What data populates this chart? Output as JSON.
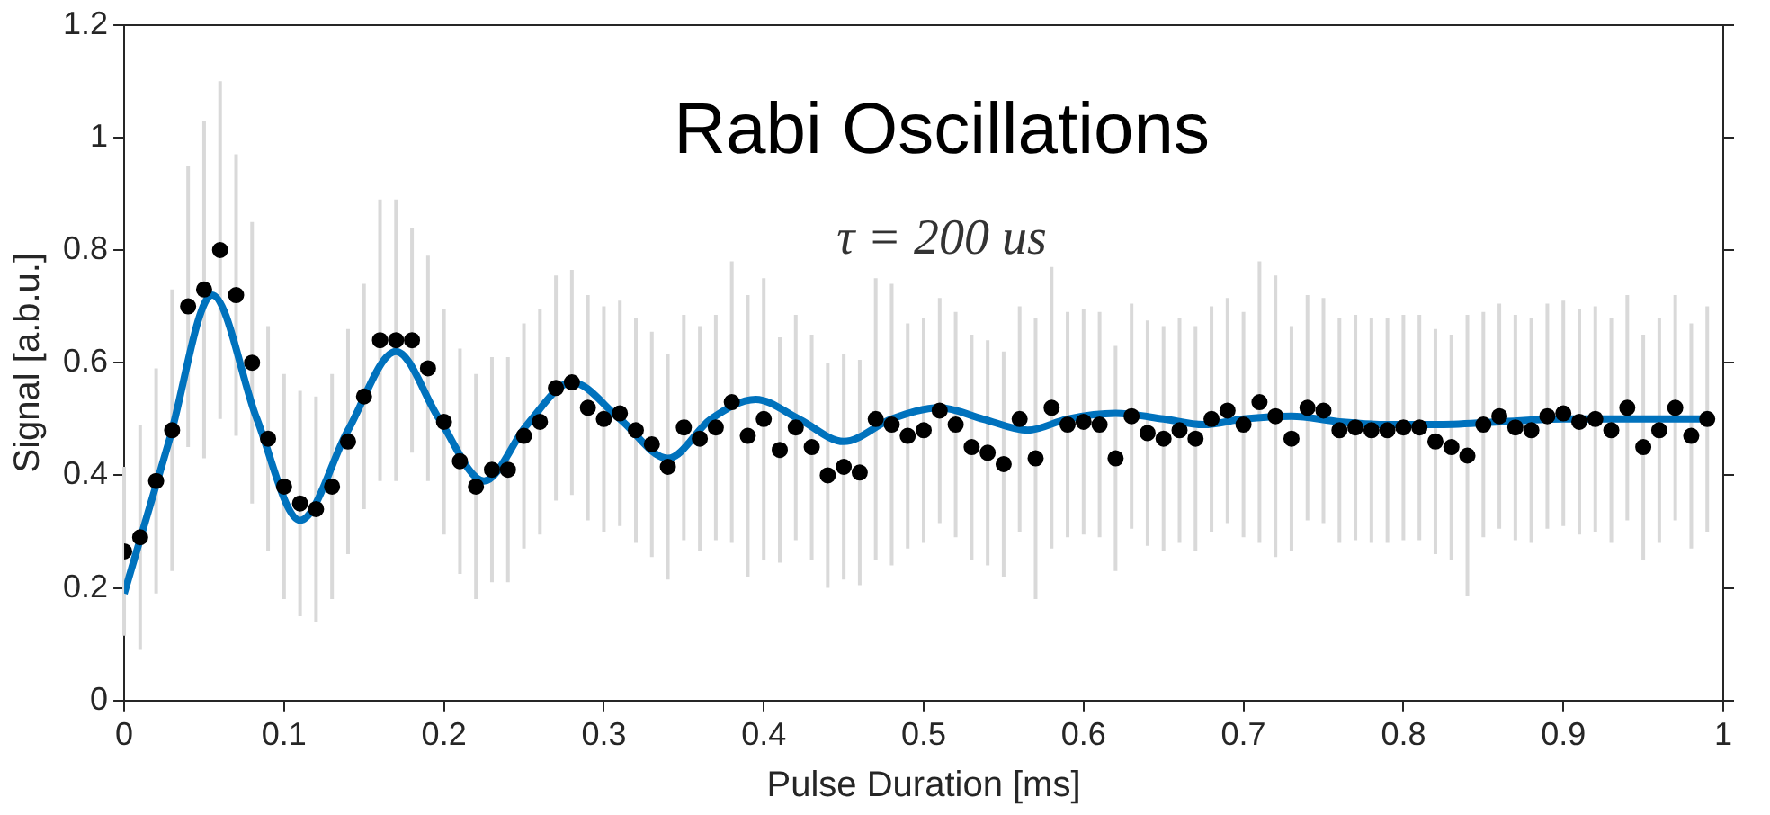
{
  "chart_data": {
    "type": "scatter",
    "title": "Rabi Oscillations",
    "xlabel": "Pulse Duration [ms]",
    "ylabel": "Signal [a.b.u.]",
    "annotations": [
      "τ = 200 us"
    ],
    "xlim": [
      0,
      1
    ],
    "xticks": [
      0,
      0.1,
      0.2,
      0.3,
      0.4,
      0.5,
      0.6,
      0.7,
      0.8,
      0.9,
      1
    ],
    "ylim": [
      0,
      1.2
    ],
    "yticks": [
      0,
      0.2,
      0.4,
      0.6,
      0.8,
      1,
      1.2
    ],
    "grid": false,
    "legend": false,
    "marker": "circle",
    "series": [
      {
        "color": "#000000",
        "x": [
          0,
          0.01,
          0.02,
          0.03,
          0.04,
          0.05,
          0.06,
          0.07,
          0.08,
          0.09,
          0.1,
          0.11,
          0.12,
          0.13,
          0.14,
          0.15,
          0.16,
          0.17,
          0.18,
          0.19,
          0.2,
          0.21,
          0.22,
          0.23,
          0.24,
          0.25,
          0.26,
          0.27,
          0.28,
          0.29,
          0.3,
          0.31,
          0.32,
          0.33,
          0.34,
          0.35,
          0.36,
          0.37,
          0.38,
          0.39,
          0.4,
          0.41,
          0.42,
          0.43,
          0.44,
          0.45,
          0.46,
          0.47,
          0.48,
          0.49,
          0.5,
          0.51,
          0.52,
          0.53,
          0.54,
          0.55,
          0.56,
          0.57,
          0.58,
          0.59,
          0.6,
          0.61,
          0.62,
          0.63,
          0.64,
          0.65,
          0.66,
          0.67,
          0.68,
          0.69,
          0.7,
          0.71,
          0.72,
          0.73,
          0.74,
          0.75,
          0.76,
          0.77,
          0.78,
          0.79,
          0.8,
          0.81,
          0.82,
          0.83,
          0.84,
          0.85,
          0.86,
          0.87,
          0.88,
          0.89,
          0.9,
          0.91,
          0.92,
          0.93,
          0.94,
          0.95,
          0.96,
          0.97,
          0.98,
          0.99
        ],
        "values": [
          0.265,
          0.29,
          0.39,
          0.48,
          0.7,
          0.73,
          0.8,
          0.72,
          0.6,
          0.465,
          0.38,
          0.35,
          0.34,
          0.38,
          0.46,
          0.54,
          0.64,
          0.64,
          0.64,
          0.59,
          0.495,
          0.425,
          0.38,
          0.41,
          0.41,
          0.47,
          0.495,
          0.555,
          0.565,
          0.52,
          0.5,
          0.51,
          0.48,
          0.455,
          0.415,
          0.485,
          0.465,
          0.485,
          0.53,
          0.47,
          0.5,
          0.445,
          0.485,
          0.45,
          0.4,
          0.415,
          0.405,
          0.5,
          0.49,
          0.47,
          0.48,
          0.515,
          0.49,
          0.45,
          0.44,
          0.42,
          0.5,
          0.43,
          0.52,
          0.49,
          0.495,
          0.49,
          0.43,
          0.505,
          0.475,
          0.465,
          0.48,
          0.465,
          0.5,
          0.515,
          0.49,
          0.53,
          0.505,
          0.465,
          0.52,
          0.515,
          0.48,
          0.485,
          0.48,
          0.48,
          0.485,
          0.485,
          0.46,
          0.45,
          0.435,
          0.49,
          0.505,
          0.485,
          0.48,
          0.505,
          0.51,
          0.495,
          0.5,
          0.48,
          0.52,
          0.45,
          0.48,
          0.52,
          0.47,
          0.5
        ],
        "errors": [
          0.15,
          0.2,
          0.2,
          0.25,
          0.25,
          0.3,
          0.3,
          0.25,
          0.25,
          0.2,
          0.2,
          0.2,
          0.2,
          0.2,
          0.2,
          0.2,
          0.25,
          0.25,
          0.2,
          0.2,
          0.2,
          0.2,
          0.2,
          0.2,
          0.2,
          0.2,
          0.2,
          0.2,
          0.2,
          0.2,
          0.2,
          0.2,
          0.2,
          0.2,
          0.2,
          0.2,
          0.2,
          0.2,
          0.25,
          0.25,
          0.25,
          0.2,
          0.2,
          0.2,
          0.2,
          0.2,
          0.2,
          0.25,
          0.25,
          0.2,
          0.2,
          0.2,
          0.2,
          0.2,
          0.2,
          0.2,
          0.2,
          0.25,
          0.25,
          0.2,
          0.2,
          0.2,
          0.2,
          0.2,
          0.2,
          0.2,
          0.2,
          0.2,
          0.2,
          0.2,
          0.2,
          0.25,
          0.25,
          0.2,
          0.2,
          0.2,
          0.2,
          0.2,
          0.2,
          0.2,
          0.2,
          0.2,
          0.2,
          0.2,
          0.25,
          0.2,
          0.2,
          0.2,
          0.2,
          0.2,
          0.2,
          0.2,
          0.2,
          0.2,
          0.2,
          0.2,
          0.2,
          0.2,
          0.2,
          0.2
        ]
      },
      {
        "type": "line",
        "color": "#0072bd",
        "marker": "none",
        "x": [
          0,
          0.028,
          0.055,
          0.083,
          0.11,
          0.14,
          0.17,
          0.197,
          0.225,
          0.252,
          0.28,
          0.31,
          0.34,
          0.367,
          0.395,
          0.422,
          0.45,
          0.48,
          0.51,
          0.537,
          0.565,
          0.59,
          0.62,
          0.65,
          0.675,
          0.7,
          0.73,
          0.76,
          0.79,
          0.82,
          0.86,
          0.9,
          0.95,
          0.99
        ],
        "values": [
          0.19,
          0.46,
          0.72,
          0.5,
          0.32,
          0.48,
          0.62,
          0.5,
          0.39,
          0.49,
          0.565,
          0.5,
          0.43,
          0.5,
          0.535,
          0.5,
          0.46,
          0.5,
          0.52,
          0.5,
          0.48,
          0.5,
          0.51,
          0.5,
          0.49,
          0.5,
          0.505,
          0.495,
          0.49,
          0.49,
          0.495,
          0.5,
          0.5,
          0.5
        ]
      }
    ]
  }
}
